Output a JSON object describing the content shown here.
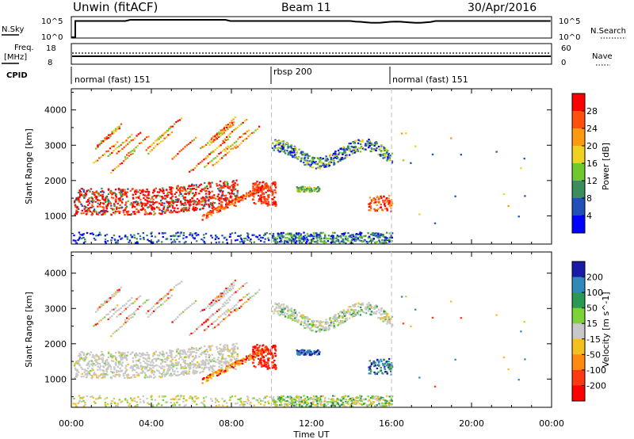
{
  "header": {
    "station": "Unwin (fitACF)",
    "beam": "Beam 11",
    "date": "30/Apr/2016"
  },
  "panels": {
    "nsky": {
      "label": "N.Sky",
      "tick_top": "10^5",
      "tick_bottom": "10^0",
      "right_tick_top": "10^5",
      "right_tick_bottom": "10^0",
      "right_label": "N.Search"
    },
    "freq": {
      "label": "Freq.",
      "unit": "[MHz]",
      "tick_top": "18",
      "tick_bottom": "8",
      "right_tick_top": "60",
      "right_tick_bottom": "0",
      "right_label": "Nave"
    },
    "cpid": {
      "label": "CPID",
      "segments": [
        {
          "label": "normal (fast) 151",
          "start_hour": 0
        },
        {
          "label": "rbsp 200",
          "start_hour": 10
        },
        {
          "label": "normal (fast) 151",
          "start_hour": 16
        }
      ]
    }
  },
  "chart_data": [
    {
      "type": "heatmap",
      "quantity": "Power",
      "ylabel": "Slant Range [km]",
      "xlabel": "Time UT",
      "x_ticks": [
        "00:00",
        "04:00",
        "08:00",
        "12:00",
        "16:00",
        "20:00",
        "00:00"
      ],
      "x_range_hours": [
        0,
        24
      ],
      "ylim": [
        200,
        4600
      ],
      "y_ticks": [
        1000,
        2000,
        3000,
        4000
      ],
      "colorbar": {
        "label": "Power [dB]",
        "range": [
          0,
          32
        ],
        "ticks": [
          4,
          8,
          12,
          16,
          20,
          24,
          28
        ],
        "colors": [
          "#0000ff",
          "#2050b8",
          "#3c8c5c",
          "#6ec82e",
          "#f0d020",
          "#ff9a10",
          "#ff5010",
          "#ff0000"
        ]
      },
      "mode_change_hours": [
        10,
        16
      ]
    },
    {
      "type": "heatmap",
      "quantity": "Velocity",
      "ylabel": "Slant Range [km]",
      "xlabel": "Time UT",
      "x_ticks": [
        "00:00",
        "04:00",
        "08:00",
        "12:00",
        "16:00",
        "20:00",
        "00:00"
      ],
      "x_range_hours": [
        0,
        24
      ],
      "ylim": [
        200,
        4600
      ],
      "y_ticks": [
        1000,
        2000,
        3000,
        4000
      ],
      "colorbar": {
        "label": "Velocity [m s^-1]",
        "ticks": [
          200,
          100,
          50,
          15,
          -15,
          -50,
          -100,
          -200
        ],
        "colors": [
          "#1a1aa8",
          "#2f8ab8",
          "#2a9a52",
          "#7cd236",
          "#c8c8c8",
          "#f4c020",
          "#ff8a10",
          "#ff3a10",
          "#ff0000"
        ]
      },
      "mode_change_hours": [
        10,
        16
      ]
    }
  ],
  "colors": {
    "axis": "#000000",
    "grey_scatter": "#c8c8c8",
    "dashed": "#c0c0c0"
  }
}
